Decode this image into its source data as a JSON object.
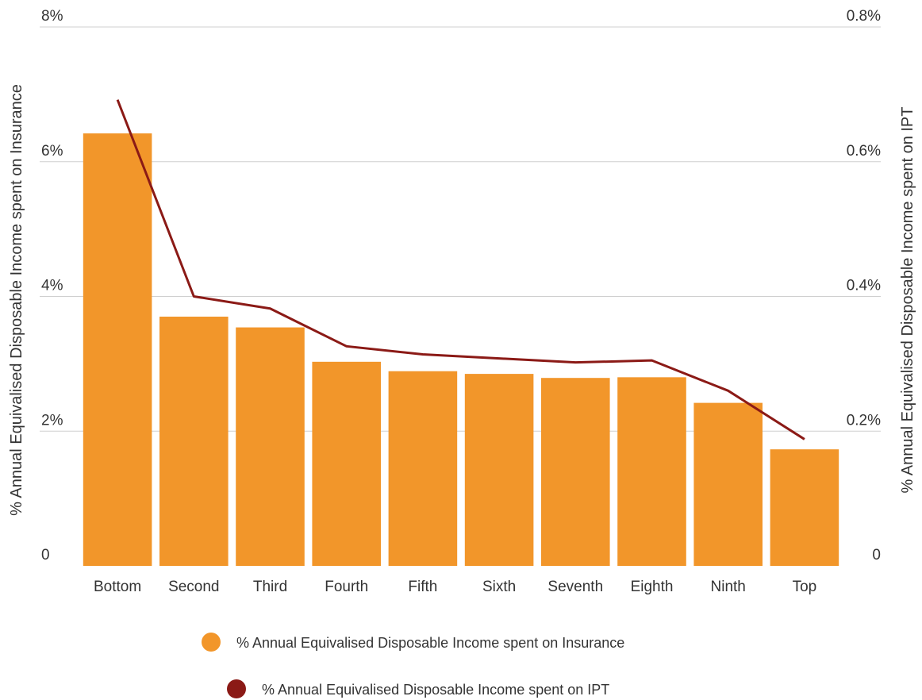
{
  "chart_data": {
    "type": "bar",
    "categories": [
      "Bottom",
      "Second",
      "Third",
      "Fourth",
      "Fifth",
      "Sixth",
      "Seventh",
      "Eighth",
      "Ninth",
      "Top"
    ],
    "series": [
      {
        "name": "% Annual Equivalised Disposable Income spent on Insurance",
        "type": "bar",
        "axis": "left",
        "color": "#F2962A",
        "values": [
          6.42,
          3.7,
          3.54,
          3.03,
          2.89,
          2.85,
          2.79,
          2.8,
          2.42,
          1.73
        ]
      },
      {
        "name": "% Annual Equivalised Disposable Income spent on IPT",
        "type": "line",
        "axis": "right",
        "color": "#8B1A16",
        "values": [
          0.692,
          0.4,
          0.382,
          0.326,
          0.314,
          0.308,
          0.302,
          0.305,
          0.26,
          0.188
        ]
      }
    ],
    "y_left": {
      "label": "% Annual Equivalised Disposable Income spent on Insurance",
      "range": [
        0,
        8
      ],
      "ticks": [
        {
          "value": 0,
          "label": "0"
        },
        {
          "value": 2,
          "label": "2%"
        },
        {
          "value": 4,
          "label": "4%"
        },
        {
          "value": 6,
          "label": "6%"
        },
        {
          "value": 8,
          "label": "8%"
        }
      ]
    },
    "y_right": {
      "label": "% Annual Equivalised Disposable Income spent on IPT",
      "range": [
        0,
        0.8
      ],
      "ticks": [
        {
          "value": 0,
          "label": "0"
        },
        {
          "value": 0.2,
          "label": "0.2%"
        },
        {
          "value": 0.4,
          "label": "0.4%"
        },
        {
          "value": 0.6,
          "label": "0.6%"
        },
        {
          "value": 0.8,
          "label": "0.8%"
        }
      ]
    },
    "grid": true,
    "legend_position": "bottom"
  }
}
